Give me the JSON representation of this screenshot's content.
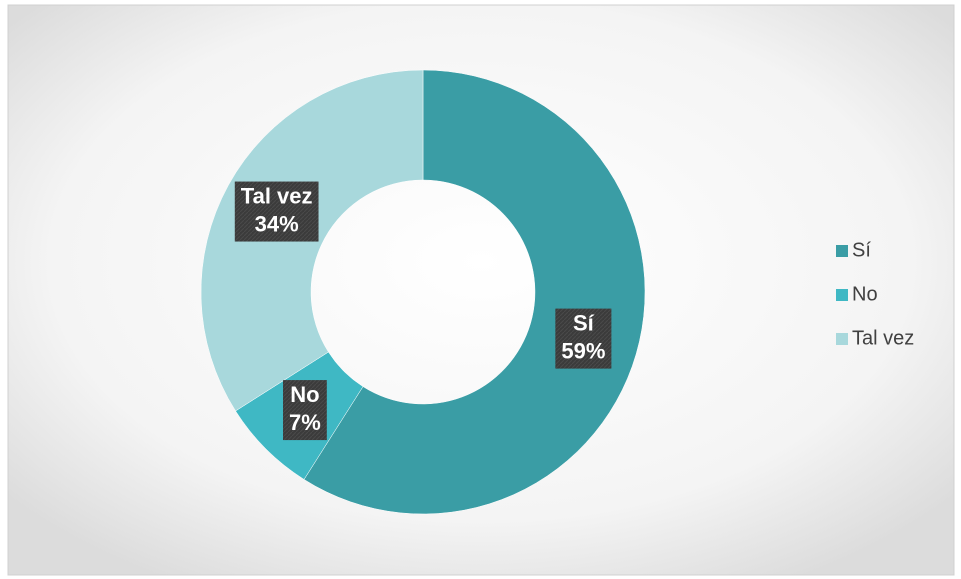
{
  "chart_data": {
    "type": "pie",
    "donut": true,
    "categories": [
      "Sí",
      "No",
      "Tal vez"
    ],
    "values": [
      59,
      7,
      34
    ],
    "value_labels": [
      "59%",
      "7%",
      "34%"
    ],
    "colors": [
      "#3a9da5",
      "#3fb8c4",
      "#a8d8dc"
    ],
    "legend": "right"
  }
}
